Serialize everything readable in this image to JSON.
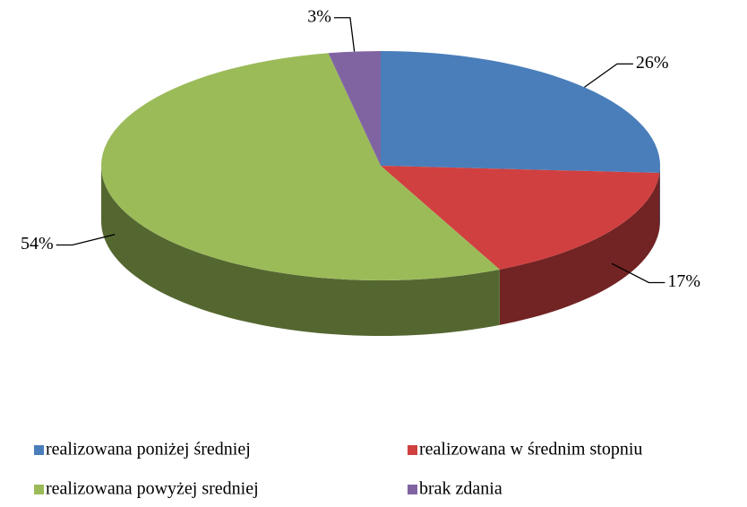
{
  "chart_data": {
    "type": "pie",
    "categories": [
      "realizowana poniżej średniej",
      "realizowana w średnim stopniu",
      "realizowana powyżej sredniej",
      "brak zdania"
    ],
    "values": [
      26,
      17,
      54,
      3
    ],
    "value_labels": [
      "26%",
      "17%",
      "54%",
      "3%"
    ],
    "colors": [
      "#4a7ebb",
      "#d04040",
      "#9bbb59",
      "#8064a2"
    ],
    "legend": "bottom"
  }
}
